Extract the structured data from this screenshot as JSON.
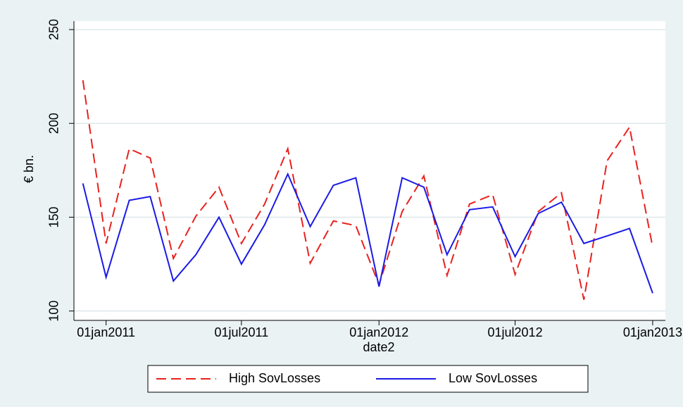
{
  "chart_data": {
    "type": "line",
    "x_label": "date2",
    "y_label": "€ bn.",
    "x": [
      "2010-12-01",
      "2011-01-01",
      "2011-02-01",
      "2011-03-01",
      "2011-04-01",
      "2011-05-01",
      "2011-06-01",
      "2011-07-01",
      "2011-08-01",
      "2011-09-01",
      "2011-10-01",
      "2011-11-01",
      "2011-12-01",
      "2012-01-01",
      "2012-02-01",
      "2012-03-01",
      "2012-04-01",
      "2012-05-01",
      "2012-06-01",
      "2012-07-01",
      "2012-08-01",
      "2012-09-01",
      "2012-10-01",
      "2012-11-01",
      "2012-12-01",
      "2013-01-01"
    ],
    "series": [
      {
        "name": "High SovLosses",
        "color": "#e8221f",
        "dash": "dashed",
        "values": [
          223,
          136,
          186.5,
          181.5,
          128,
          150.5,
          166,
          136,
          157,
          186.5,
          125.5,
          148,
          145.5,
          114,
          153,
          172,
          119,
          157,
          162,
          119.5,
          153,
          163,
          106,
          180,
          198,
          134
        ]
      },
      {
        "name": "Low SovLosses",
        "color": "#1a1ae6",
        "dash": "solid",
        "values": [
          168,
          118,
          159,
          161,
          116,
          130,
          150,
          125,
          146,
          173,
          145,
          167,
          171,
          113,
          171,
          166,
          130,
          154,
          155.5,
          129,
          152,
          158,
          136,
          140,
          144,
          109.5
        ]
      }
    ],
    "xlim": [
      "2010-11-19",
      "2013-01-18"
    ],
    "xticks": [
      {
        "value": "2011-01-01",
        "label": "01jan2011"
      },
      {
        "value": "2011-07-01",
        "label": "01jul2011"
      },
      {
        "value": "2012-01-01",
        "label": "01jan2012"
      },
      {
        "value": "2012-07-01",
        "label": "01jul2012"
      },
      {
        "value": "2013-01-01",
        "label": "01jan2013"
      }
    ],
    "ylim": [
      95,
      254.5
    ],
    "yticks": [
      100,
      150,
      200,
      250
    ],
    "grid": true,
    "legend": "bottom"
  }
}
